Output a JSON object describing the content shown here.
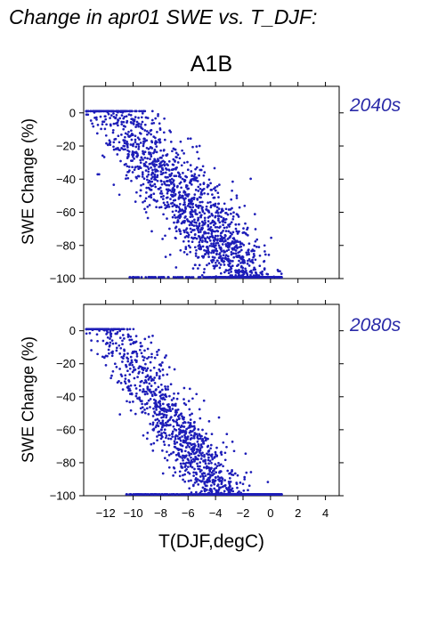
{
  "title": "Change in apr01 SWE vs. T_DJF:",
  "scenario": "A1B",
  "colors": {
    "points": "#1d1db8",
    "period_text": "#2a2aa8",
    "axes": "#000000"
  },
  "chart_data": [
    {
      "type": "scatter",
      "period": "2040s",
      "ylabel": "SWE Change (%)",
      "xlim": [
        -13.6,
        5.0
      ],
      "ylim": [
        -100,
        16
      ],
      "xticks": [
        -12,
        -10,
        -8,
        -6,
        -4,
        -2,
        0,
        2,
        4
      ],
      "yticks": [
        0,
        -20,
        -40,
        -60,
        -80,
        -100
      ],
      "yticklabels": [
        "0",
        "−20",
        "−40",
        "−60",
        "−80",
        "−100"
      ],
      "show_xticklabels": false,
      "series": [
        {
          "x": [],
          "y": []
        }
      ]
    },
    {
      "type": "scatter",
      "period": "2080s",
      "ylabel": "SWE Change (%)",
      "xlabel": "T(DJF,degC)",
      "xlim": [
        -13.6,
        5.0
      ],
      "ylim": [
        -100,
        16
      ],
      "xticks": [
        -12,
        -10,
        -8,
        -6,
        -4,
        -2,
        0,
        2,
        4
      ],
      "xticklabels": [
        "−12",
        "−10",
        "−8",
        "−6",
        "−4",
        "−2",
        "0",
        "2",
        "4"
      ],
      "yticks": [
        0,
        -20,
        -40,
        -60,
        -80,
        -100
      ],
      "yticklabels": [
        "0",
        "−20",
        "−40",
        "−60",
        "−80",
        "−100"
      ],
      "show_xticklabels": true,
      "series": [
        {
          "x": [],
          "y": []
        }
      ]
    }
  ]
}
